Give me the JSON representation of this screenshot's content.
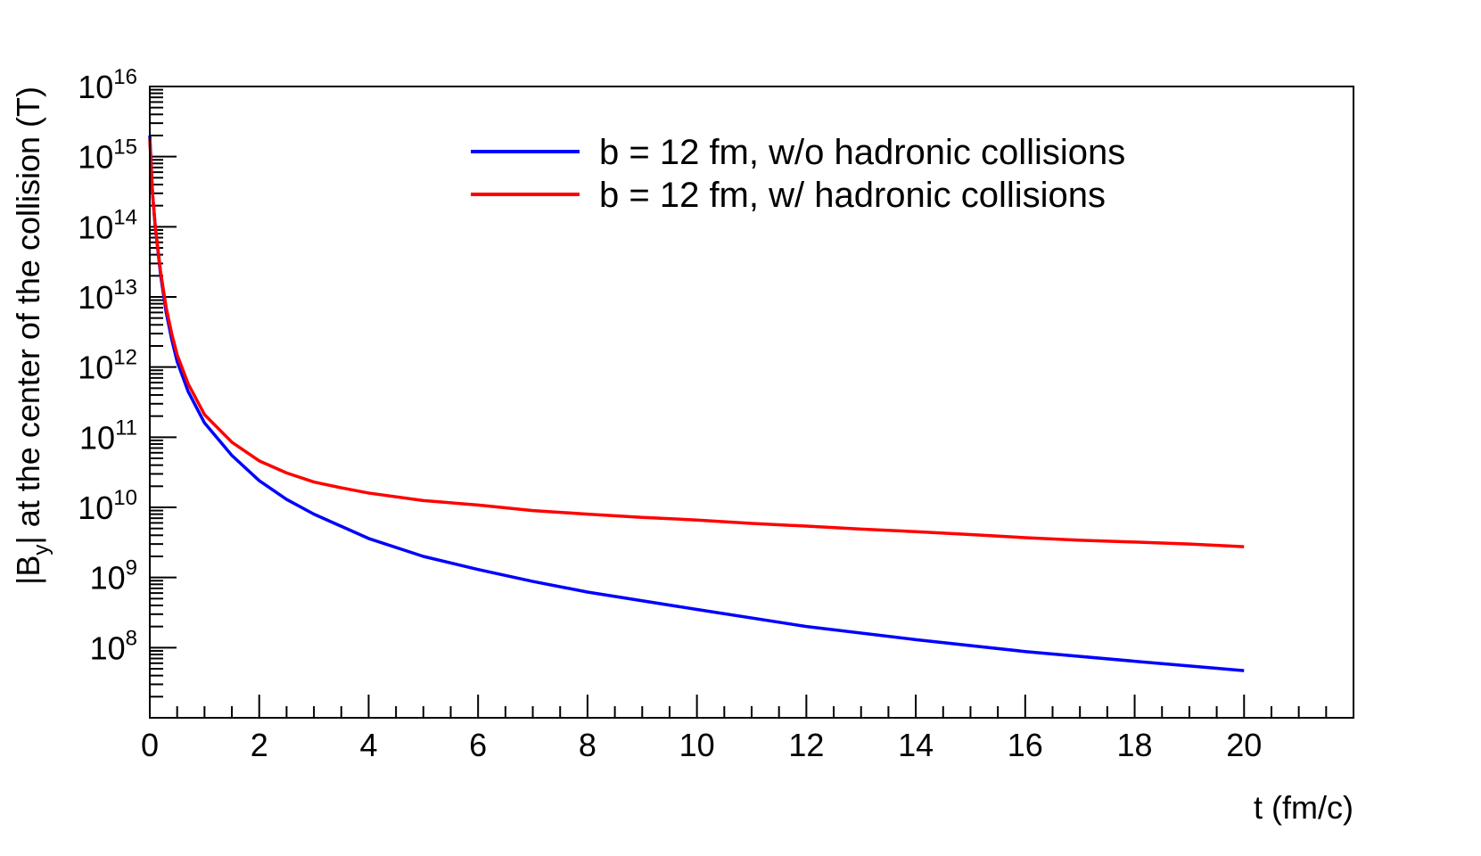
{
  "chart_data": {
    "type": "line",
    "title": "",
    "xlabel": "t (fm/c)",
    "ylabel": {
      "prefix": "|B",
      "subscript": "y",
      "suffix": "| at the center of the collision (T)"
    },
    "xlim": [
      0,
      22
    ],
    "ylim_log10": [
      7,
      16
    ],
    "y_scale": "log",
    "x_ticks": [
      0,
      2,
      4,
      6,
      8,
      10,
      12,
      14,
      16,
      18,
      20
    ],
    "x_tick_labels": [
      "0",
      "2",
      "4",
      "6",
      "8",
      "10",
      "12",
      "14",
      "16",
      "18",
      "20"
    ],
    "y_ticks_exponents": [
      8,
      9,
      10,
      11,
      12,
      13,
      14,
      15,
      16
    ],
    "y_tick_base": "10",
    "y_tick_labels_exp": [
      "8",
      "9",
      "10",
      "11",
      "12",
      "13",
      "14",
      "15",
      "16"
    ],
    "grid": false,
    "legend_position": "top-right",
    "series": [
      {
        "name": "b = 12 fm, w/o hadronic collisions",
        "color": "#0000ff",
        "x": [
          0.0,
          0.05,
          0.1,
          0.2,
          0.3,
          0.4,
          0.5,
          0.7,
          1.0,
          1.5,
          2.0,
          2.5,
          3.0,
          4.0,
          5.0,
          6.0,
          7.0,
          8.0,
          10.0,
          12.0,
          14.0,
          16.0,
          18.0,
          20.0
        ],
        "y": [
          2000000000000000.0,
          300000000000000.0,
          100000000000000.0,
          20000000000000.0,
          6000000000000.0,
          2500000000000.0,
          1200000000000.0,
          450000000000.0,
          160000000000.0,
          55000000000.0,
          24000000000.0,
          13000000000.0,
          8000000000.0,
          3600000000.0,
          2000000000.0,
          1300000000.0,
          880000000.0,
          620000000.0,
          350000000.0,
          200000000.0,
          130000000.0,
          88000000.0,
          64000000.0,
          47000000.0
        ]
      },
      {
        "name": "b = 12 fm, w/ hadronic collisions",
        "color": "#ff0000",
        "x": [
          0.0,
          0.05,
          0.1,
          0.2,
          0.3,
          0.4,
          0.5,
          0.7,
          1.0,
          1.5,
          2.0,
          2.5,
          3.0,
          3.5,
          4.0,
          5.0,
          6.0,
          7.0,
          8.0,
          9.0,
          10.0,
          11.0,
          12.0,
          13.0,
          14.0,
          15.0,
          16.0,
          17.0,
          18.0,
          19.0,
          20.0
        ],
        "y": [
          1800000000000000.0,
          300000000000000.0,
          100000000000000.0,
          22000000000000.0,
          7000000000000.0,
          3000000000000.0,
          1500000000000.0,
          580000000000.0,
          210000000000.0,
          85000000000.0,
          46000000000.0,
          31000000000.0,
          23000000000.0,
          19000000000.0,
          16000000000.0,
          12500000000.0,
          10800000000.0,
          9000000000.0,
          8000000000.0,
          7200000000.0,
          6600000000.0,
          5900000000.0,
          5400000000.0,
          4900000000.0,
          4500000000.0,
          4100000000.0,
          3700000000.0,
          3400000000.0,
          3200000000.0,
          3000000000.0,
          2750000000.0
        ]
      }
    ]
  }
}
